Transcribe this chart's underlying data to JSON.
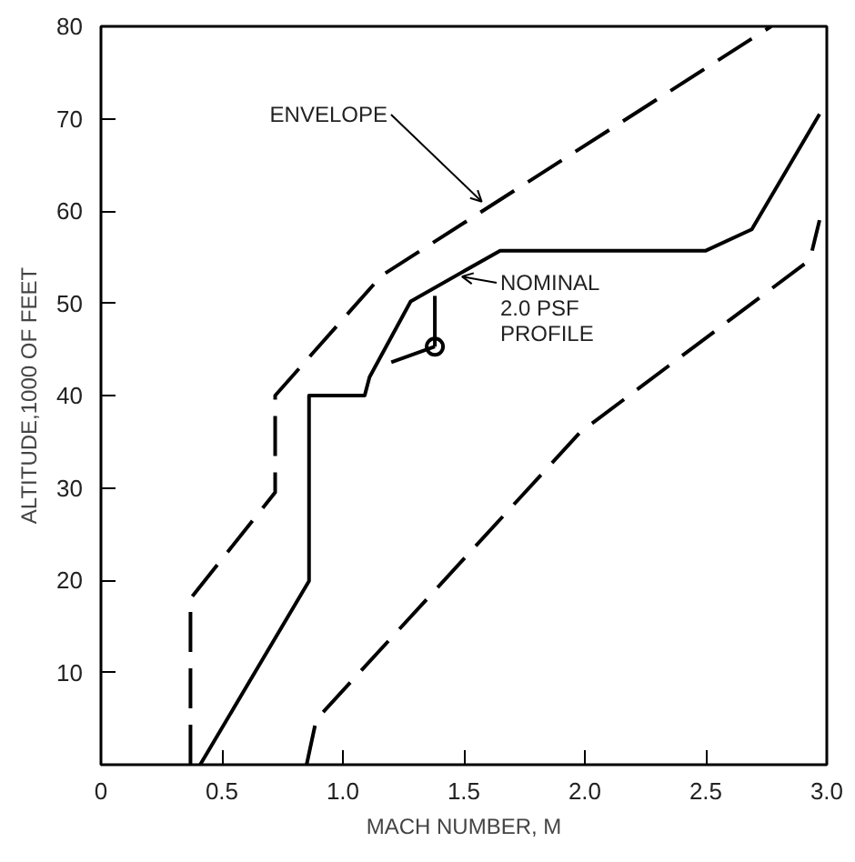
{
  "chart_data": {
    "type": "line",
    "xlabel": "MACH NUMBER, M",
    "ylabel": "ALTITUDE,1000 OF FEET",
    "xlim": [
      0,
      3
    ],
    "ylim": [
      0,
      80
    ],
    "xticks": [
      0,
      {
        "value": 0.5,
        "label": "0.5"
      },
      {
        "value": 1,
        "label": "1.0"
      },
      {
        "value": 1.5,
        "label": "1.5"
      },
      {
        "value": 2,
        "label": "2.0"
      },
      {
        "value": 2.5,
        "label": "2.5"
      },
      {
        "value": 3,
        "label": "3.0"
      }
    ],
    "yticks": [
      {
        "value": 0,
        "label": null
      },
      10,
      20,
      30,
      40,
      50,
      60,
      70,
      80
    ],
    "grid": false,
    "marker": "none",
    "series": [
      {
        "color": "#000000",
        "line_style": "dashed",
        "x": [
          0.37,
          0.37,
          0.72,
          0.72,
          1.16,
          2.77
        ],
        "values": [
          0,
          18,
          29.5,
          40,
          53,
          80
        ]
      },
      {
        "color": "#000000",
        "line_style": "solid",
        "x": [
          0.41,
          0.86,
          0.86,
          1.09,
          1.11,
          1.28,
          1.65,
          2.5,
          2.69,
          2.97
        ],
        "values": [
          0,
          19.9,
          40,
          40,
          42,
          50.2,
          55.7,
          55.7,
          58,
          70.5
        ]
      },
      {
        "color": "#000000",
        "line_style": "dashed",
        "x": [
          0.85,
          0.89,
          1.98,
          2.93,
          2.97
        ],
        "values": [
          0,
          4.9,
          36,
          54.7,
          59
        ]
      },
      {
        "type": "scatter",
        "marker": "circle",
        "color": "#000000",
        "x": [
          1.38
        ],
        "values": [
          45.3
        ]
      },
      {
        "color": "#000000",
        "line_style": "solid",
        "x": [
          1.38,
          1.2
        ],
        "values": [
          45.3,
          43.6
        ]
      },
      {
        "color": "#000000",
        "line_style": "solid",
        "x": [
          1.38,
          1.38
        ],
        "values": [
          45.3,
          50.8
        ]
      }
    ],
    "annotations": [
      {
        "text": "ENVELOPE",
        "x": 1.59,
        "y": 60.6
      },
      {
        "text": "NOMINAL\n2.0 PSF\nPROFILE",
        "x": 1.47,
        "y": 53.0
      }
    ]
  }
}
